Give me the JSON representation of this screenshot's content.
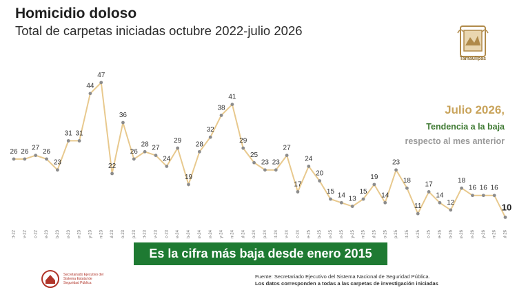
{
  "header": {
    "title": "Homicidio doloso",
    "subtitle": "Total de carpetas iniciadas octubre 2022-julio 2026"
  },
  "logo": {
    "label": "Tamaulipas"
  },
  "note": {
    "line1": "Julio 2026,",
    "line2": "Tendencia a la baja",
    "line3": "respecto al mes anterior"
  },
  "banner": {
    "text": "Es la cifra más baja desde enero 2015"
  },
  "footer": {
    "org": "Secretariado Ejecutivo del Sistema Estatal de Seguridad Pública",
    "source": "Fuente: Secretariado Ejecutivo del Sistema Nacional de Seguridad Pública.",
    "source_note": "Los datos corresponden a todas a las carpetas de investigación iniciadas"
  },
  "colors": {
    "line": "#e8c98e",
    "marker": "#8c8c8c",
    "banner": "#1e7a32",
    "note_accent": "#c9a45c",
    "note_green": "#3f7a33"
  },
  "chart_data": {
    "type": "line",
    "title": "",
    "xlabel": "",
    "ylabel": "",
    "categories": [
      "oct-22",
      "nov-22",
      "dic-22",
      "ene-23",
      "feb-23",
      "mar-23",
      "abr-23",
      "may-23",
      "jun-23",
      "jul-23",
      "ago-23",
      "sep-23",
      "oct-23",
      "nov-23",
      "dic-23",
      "ene-24",
      "feb-24",
      "mar-24",
      "abr-24",
      "may-24",
      "jun-24",
      "jul-24",
      "ago-24",
      "sep-24",
      "oct-24",
      "nov-24",
      "dic-24",
      "ene-25",
      "feb-25",
      "mar-25",
      "abr-25",
      "may-25",
      "jun-25",
      "jul-25",
      "ago-25",
      "sep-25",
      "oct-25",
      "nov-25",
      "dic-25",
      "ene-26",
      "feb-26",
      "mar-26",
      "abr-26",
      "may-26",
      "jun-26",
      "jul-26"
    ],
    "values": [
      26,
      26,
      27,
      26,
      23,
      31,
      31,
      44,
      47,
      22,
      36,
      26,
      28,
      27,
      24,
      29,
      19,
      28,
      32,
      38,
      41,
      29,
      25,
      23,
      23,
      27,
      17,
      24,
      20,
      15,
      14,
      13,
      15,
      19,
      14,
      23,
      18,
      11,
      17,
      14,
      12,
      18,
      16,
      16,
      16,
      10
    ],
    "ylim": [
      8,
      50
    ],
    "grid": false,
    "legend": "none"
  }
}
